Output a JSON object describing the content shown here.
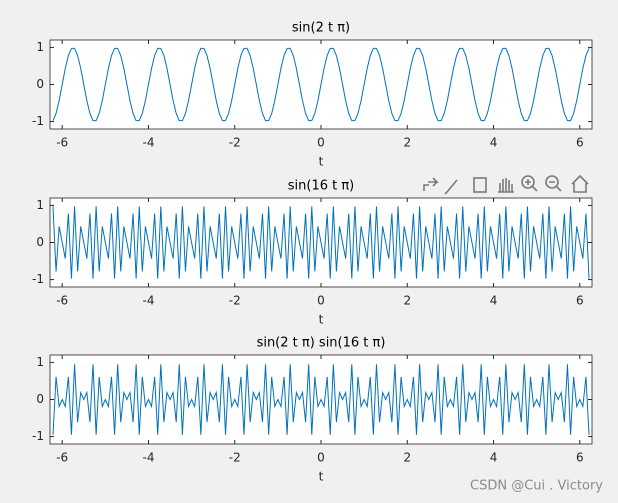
{
  "chart_data": [
    {
      "type": "line",
      "title": "sin(2 t π)",
      "xlabel": "t",
      "x": [
        -6.214,
        -6.143,
        -6.071,
        -6,
        -5.929,
        -5.857,
        -5.786,
        -5.714,
        -5.643,
        -5.571,
        -5.5,
        -5.429,
        -5.357,
        -5.286,
        -5.214,
        -5.143,
        -5.071,
        -5,
        -4.929,
        -4.857,
        -4.786,
        -4.714,
        -4.643,
        -4.571,
        -4.5,
        -4.429,
        -4.357,
        -4.286,
        -4.214,
        -4.143,
        -4.071,
        -4,
        -3.929,
        -3.857,
        -3.786,
        -3.714,
        -3.643,
        -3.571,
        -3.5,
        -3.429,
        -3.357,
        -3.286,
        -3.214,
        -3.143,
        -3.071,
        -3,
        -2.929,
        -2.857,
        -2.786,
        -2.714,
        -2.643,
        -2.571,
        -2.5,
        -2.429,
        -2.357,
        -2.286,
        -2.214,
        -2.143,
        -2.071,
        -2,
        -1.929,
        -1.857,
        -1.786,
        -1.714,
        -1.643,
        -1.571,
        -1.5,
        -1.429,
        -1.357,
        -1.286,
        -1.214,
        -1.143,
        -1.071,
        -1,
        -0.929,
        -0.857,
        -0.786,
        -0.714,
        -0.643,
        -0.571,
        -0.5,
        -0.429,
        -0.357,
        -0.286,
        -0.214,
        -0.143,
        -0.071,
        0,
        0.071,
        0.143,
        0.214,
        0.286,
        0.357,
        0.429,
        0.5,
        0.571,
        0.643,
        0.714,
        0.786,
        0.857,
        0.929,
        1,
        1.071,
        1.143,
        1.214,
        1.286,
        1.357,
        1.429,
        1.5,
        1.571,
        1.643,
        1.714,
        1.786,
        1.857,
        1.929,
        2,
        2.071,
        2.143,
        2.214,
        2.286,
        2.357,
        2.429,
        2.5,
        2.571,
        2.643,
        2.714,
        2.786,
        2.857,
        2.929,
        3,
        3.071,
        3.143,
        3.214,
        3.286,
        3.357,
        3.429,
        3.5,
        3.571,
        3.643,
        3.714,
        3.786,
        3.857,
        3.929,
        4,
        4.071,
        4.143,
        4.214,
        4.286,
        4.357,
        4.429,
        4.5,
        4.571,
        4.643,
        4.714,
        4.786,
        4.857,
        4.929,
        5,
        5.071,
        5.143,
        5.214,
        5.286,
        5.357,
        5.429,
        5.5,
        5.571,
        5.643,
        5.714,
        5.786,
        5.857,
        5.929,
        6,
        6.071,
        6.143,
        6.214
      ],
      "series": [
        {
          "color": "#0072bd",
          "values": [
            -0.975,
            -0.782,
            -0.434,
            0,
            0.434,
            0.782,
            0.975,
            0.975,
            0.782,
            0.434,
            0,
            -0.434,
            -0.782,
            -0.975,
            -0.975,
            -0.782,
            -0.434,
            0,
            0.434,
            0.782,
            0.975,
            0.975,
            0.782,
            0.434,
            0,
            -0.434,
            -0.782,
            -0.975,
            -0.975,
            -0.782,
            -0.434,
            0,
            0.434,
            0.782,
            0.975,
            0.975,
            0.782,
            0.434,
            0,
            -0.434,
            -0.782,
            -0.975,
            -0.975,
            -0.782,
            -0.434,
            0,
            0.434,
            0.782,
            0.975,
            0.975,
            0.782,
            0.434,
            0,
            -0.434,
            -0.782,
            -0.975,
            -0.975,
            -0.782,
            -0.434,
            0,
            0.434,
            0.782,
            0.975,
            0.975,
            0.782,
            0.434,
            0,
            -0.434,
            -0.782,
            -0.975,
            -0.975,
            -0.782,
            -0.434,
            0,
            0.434,
            0.782,
            0.975,
            0.975,
            0.782,
            0.434,
            0,
            -0.434,
            -0.782,
            -0.975,
            -0.975,
            -0.782,
            -0.434,
            0,
            0.434,
            0.782,
            0.975,
            0.975,
            0.782,
            0.434,
            0,
            -0.434,
            -0.782,
            -0.975,
            -0.975,
            -0.782,
            -0.434,
            0,
            0.434,
            0.782,
            0.975,
            0.975,
            0.782,
            0.434,
            0,
            -0.434,
            -0.782,
            -0.975,
            -0.975,
            -0.782,
            -0.434,
            0,
            0.434,
            0.782,
            0.975,
            0.975,
            0.782,
            0.434,
            0,
            -0.434,
            -0.782,
            -0.975,
            -0.975,
            -0.782,
            -0.434,
            0,
            0.434,
            0.782,
            0.975,
            0.975,
            0.782,
            0.434,
            0,
            -0.434,
            -0.782,
            -0.975,
            -0.975,
            -0.782,
            -0.434,
            0,
            0.434,
            0.782,
            0.975,
            0.975,
            0.782,
            0.434,
            0,
            -0.434,
            -0.782,
            -0.975,
            -0.975,
            -0.782,
            -0.434,
            0,
            0.434,
            0.782,
            0.975,
            0.975,
            0.782,
            0.434,
            0,
            -0.434,
            -0.782,
            -0.975,
            -0.975,
            -0.782,
            -0.434,
            0,
            0.434,
            0.782,
            0.975
          ]
        }
      ],
      "xlim": [
        -6.2832,
        6.2832
      ],
      "ylim": [
        -1.2,
        1.2
      ],
      "xticks": [
        -6,
        -4,
        -2,
        0,
        2,
        4,
        6
      ],
      "yticks": [
        -1,
        0,
        1
      ]
    },
    {
      "type": "line",
      "title": "sin(16 t π)",
      "xlabel": "t",
      "x": [
        -6.214,
        -6.143,
        -6.071,
        -6,
        -5.929,
        -5.857,
        -5.786,
        -5.714,
        -5.643,
        -5.571,
        -5.5,
        -5.429,
        -5.357,
        -5.286,
        -5.214,
        -5.143,
        -5.071,
        -5,
        -4.929,
        -4.857,
        -4.786,
        -4.714,
        -4.643,
        -4.571,
        -4.5,
        -4.429,
        -4.357,
        -4.286,
        -4.214,
        -4.143,
        -4.071,
        -4,
        -3.929,
        -3.857,
        -3.786,
        -3.714,
        -3.643,
        -3.571,
        -3.5,
        -3.429,
        -3.357,
        -3.286,
        -3.214,
        -3.143,
        -3.071,
        -3,
        -2.929,
        -2.857,
        -2.786,
        -2.714,
        -2.643,
        -2.571,
        -2.5,
        -2.429,
        -2.357,
        -2.286,
        -2.214,
        -2.143,
        -2.071,
        -2,
        -1.929,
        -1.857,
        -1.786,
        -1.714,
        -1.643,
        -1.571,
        -1.5,
        -1.429,
        -1.357,
        -1.286,
        -1.214,
        -1.143,
        -1.071,
        -1,
        -0.929,
        -0.857,
        -0.786,
        -0.714,
        -0.643,
        -0.571,
        -0.5,
        -0.429,
        -0.357,
        -0.286,
        -0.214,
        -0.143,
        -0.071,
        0,
        0.071,
        0.143,
        0.214,
        0.286,
        0.357,
        0.429,
        0.5,
        0.571,
        0.643,
        0.714,
        0.786,
        0.857,
        0.929,
        1,
        1.071,
        1.143,
        1.214,
        1.286,
        1.357,
        1.429,
        1.5,
        1.571,
        1.643,
        1.714,
        1.786,
        1.857,
        1.929,
        2,
        2.071,
        2.143,
        2.214,
        2.286,
        2.357,
        2.429,
        2.5,
        2.571,
        2.643,
        2.714,
        2.786,
        2.857,
        2.929,
        3,
        3.071,
        3.143,
        3.214,
        3.286,
        3.357,
        3.429,
        3.5,
        3.571,
        3.643,
        3.714,
        3.786,
        3.857,
        3.929,
        4,
        4.071,
        4.143,
        4.214,
        4.286,
        4.357,
        4.429,
        4.5,
        4.571,
        4.643,
        4.714,
        4.786,
        4.857,
        4.929,
        5,
        5.071,
        5.143,
        5.214,
        5.286,
        5.357,
        5.429,
        5.5,
        5.571,
        5.643,
        5.714,
        5.786,
        5.857,
        5.929,
        6,
        6.071,
        6.143,
        6.214
      ],
      "series": [
        {
          "color": "#0072bd",
          "values": [
            0.975,
            -0.782,
            0.434,
            0,
            -0.434,
            0.782,
            -0.975,
            0.975,
            -0.782,
            0.434,
            0,
            -0.434,
            0.782,
            -0.975,
            0.975,
            -0.782,
            0.434,
            0,
            -0.434,
            0.782,
            -0.975,
            0.975,
            -0.782,
            0.434,
            0,
            -0.434,
            0.782,
            -0.975,
            0.975,
            -0.782,
            0.434,
            0,
            -0.434,
            0.782,
            -0.975,
            0.975,
            -0.782,
            0.434,
            0,
            -0.434,
            0.782,
            -0.975,
            0.975,
            -0.782,
            0.434,
            0,
            -0.434,
            0.782,
            -0.975,
            0.975,
            -0.782,
            0.434,
            0,
            -0.434,
            0.782,
            -0.975,
            0.975,
            -0.782,
            0.434,
            0,
            -0.434,
            0.782,
            -0.975,
            0.975,
            -0.782,
            0.434,
            0,
            -0.434,
            0.782,
            -0.975,
            0.975,
            -0.782,
            0.434,
            0,
            -0.434,
            0.782,
            -0.975,
            0.975,
            -0.782,
            0.434,
            0,
            -0.434,
            0.782,
            -0.975,
            0.975,
            -0.782,
            0.434,
            0,
            -0.434,
            0.782,
            -0.975,
            0.975,
            -0.782,
            0.434,
            0,
            -0.434,
            0.782,
            -0.975,
            0.975,
            -0.782,
            0.434,
            0,
            -0.434,
            0.782,
            -0.975,
            0.975,
            -0.782,
            0.434,
            0,
            -0.434,
            0.782,
            -0.975,
            0.975,
            -0.782,
            0.434,
            0,
            -0.434,
            0.782,
            -0.975,
            0.975,
            -0.782,
            0.434,
            0,
            -0.434,
            0.782,
            -0.975,
            0.975,
            -0.782,
            0.434,
            0,
            -0.434,
            0.782,
            -0.975,
            0.975,
            -0.782,
            0.434,
            0,
            -0.434,
            0.782,
            -0.975,
            0.975,
            -0.782,
            0.434,
            0,
            -0.434,
            0.782,
            -0.975,
            0.975,
            -0.782,
            0.434,
            0,
            -0.434,
            0.782,
            -0.975,
            0.975,
            -0.782,
            0.434,
            0,
            -0.434,
            0.782,
            -0.975,
            0.975,
            -0.782,
            0.434,
            0,
            -0.434,
            0.782,
            -0.975,
            0.975,
            -0.782,
            0.434,
            0,
            -0.434,
            0.782,
            -0.975
          ]
        }
      ],
      "xlim": [
        -6.2832,
        6.2832
      ],
      "ylim": [
        -1.2,
        1.2
      ],
      "xticks": [
        -6,
        -4,
        -2,
        0,
        2,
        4,
        6
      ],
      "yticks": [
        -1,
        0,
        1
      ]
    },
    {
      "type": "line",
      "title": "sin(2 t π) sin(16 t π)",
      "xlabel": "t",
      "x": [
        -6.214,
        -6.143,
        -6.071,
        -6,
        -5.929,
        -5.857,
        -5.786,
        -5.714,
        -5.643,
        -5.571,
        -5.5,
        -5.429,
        -5.357,
        -5.286,
        -5.214,
        -5.143,
        -5.071,
        -5,
        -4.929,
        -4.857,
        -4.786,
        -4.714,
        -4.643,
        -4.571,
        -4.5,
        -4.429,
        -4.357,
        -4.286,
        -4.214,
        -4.143,
        -4.071,
        -4,
        -3.929,
        -3.857,
        -3.786,
        -3.714,
        -3.643,
        -3.571,
        -3.5,
        -3.429,
        -3.357,
        -3.286,
        -3.214,
        -3.143,
        -3.071,
        -3,
        -2.929,
        -2.857,
        -2.786,
        -2.714,
        -2.643,
        -2.571,
        -2.5,
        -2.429,
        -2.357,
        -2.286,
        -2.214,
        -2.143,
        -2.071,
        -2,
        -1.929,
        -1.857,
        -1.786,
        -1.714,
        -1.643,
        -1.571,
        -1.5,
        -1.429,
        -1.357,
        -1.286,
        -1.214,
        -1.143,
        -1.071,
        -1,
        -0.929,
        -0.857,
        -0.786,
        -0.714,
        -0.643,
        -0.571,
        -0.5,
        -0.429,
        -0.357,
        -0.286,
        -0.214,
        -0.143,
        -0.071,
        0,
        0.071,
        0.143,
        0.214,
        0.286,
        0.357,
        0.429,
        0.5,
        0.571,
        0.643,
        0.714,
        0.786,
        0.857,
        0.929,
        1,
        1.071,
        1.143,
        1.214,
        1.286,
        1.357,
        1.429,
        1.5,
        1.571,
        1.643,
        1.714,
        1.786,
        1.857,
        1.929,
        2,
        2.071,
        2.143,
        2.214,
        2.286,
        2.357,
        2.429,
        2.5,
        2.571,
        2.643,
        2.714,
        2.786,
        2.857,
        2.929,
        3,
        3.071,
        3.143,
        3.214,
        3.286,
        3.357,
        3.429,
        3.5,
        3.571,
        3.643,
        3.714,
        3.786,
        3.857,
        3.929,
        4,
        4.071,
        4.143,
        4.214,
        4.286,
        4.357,
        4.429,
        4.5,
        4.571,
        4.643,
        4.714,
        4.786,
        4.857,
        4.929,
        5,
        5.071,
        5.143,
        5.214,
        5.286,
        5.357,
        5.429,
        5.5,
        5.571,
        5.643,
        5.714,
        5.786,
        5.857,
        5.929,
        6,
        6.071,
        6.143,
        6.214
      ],
      "series": [
        {
          "color": "#0072bd",
          "values": [
            -0.95,
            0.611,
            -0.188,
            0,
            -0.188,
            0.611,
            -0.95,
            0.95,
            -0.611,
            0.188,
            0,
            0.188,
            -0.611,
            0.95,
            -0.95,
            0.611,
            -0.188,
            0,
            -0.188,
            0.611,
            -0.95,
            0.95,
            -0.611,
            0.188,
            0,
            0.188,
            -0.611,
            0.95,
            -0.95,
            0.611,
            -0.188,
            0,
            -0.188,
            0.611,
            -0.95,
            0.95,
            -0.611,
            0.188,
            0,
            0.188,
            -0.611,
            0.95,
            -0.95,
            0.611,
            -0.188,
            0,
            -0.188,
            0.611,
            -0.95,
            0.95,
            -0.611,
            0.188,
            0,
            0.188,
            -0.611,
            0.95,
            -0.95,
            0.611,
            -0.188,
            0,
            -0.188,
            0.611,
            -0.95,
            0.95,
            -0.611,
            0.188,
            0,
            0.188,
            -0.611,
            0.95,
            -0.95,
            0.611,
            -0.188,
            0,
            -0.188,
            0.611,
            -0.95,
            0.95,
            -0.611,
            0.188,
            0,
            0.188,
            -0.611,
            0.95,
            -0.95,
            0.611,
            -0.188,
            0,
            -0.188,
            0.611,
            -0.95,
            0.95,
            -0.611,
            0.188,
            0,
            0.188,
            -0.611,
            0.95,
            -0.95,
            0.611,
            -0.188,
            0,
            -0.188,
            0.611,
            -0.95,
            0.95,
            -0.611,
            0.188,
            0,
            0.188,
            -0.611,
            0.95,
            -0.95,
            0.611,
            -0.188,
            0,
            -0.188,
            0.611,
            -0.95,
            0.95,
            -0.611,
            0.188,
            0,
            0.188,
            -0.611,
            0.95,
            -0.95,
            0.611,
            -0.188,
            0,
            -0.188,
            0.611,
            -0.95,
            0.95,
            -0.611,
            0.188,
            0,
            0.188,
            -0.611,
            0.95,
            -0.95,
            0.611,
            -0.188,
            0,
            -0.188,
            0.611,
            -0.95,
            0.95,
            -0.611,
            0.188,
            0,
            0.188,
            -0.611,
            0.95,
            -0.95,
            0.611,
            -0.188,
            0,
            -0.188,
            0.611,
            -0.95,
            0.95,
            -0.611,
            0.188,
            0,
            0.188,
            -0.611,
            0.95,
            -0.95,
            0.611,
            -0.188,
            0,
            -0.188,
            0.611,
            -0.95
          ]
        }
      ],
      "xlim": [
        -6.2832,
        6.2832
      ],
      "ylim": [
        -1.2,
        1.2
      ],
      "xticks": [
        -6,
        -4,
        -2,
        0,
        2,
        4,
        6
      ],
      "yticks": [
        -1,
        0,
        1
      ]
    }
  ],
  "watermark": "CSDN @Cui . Victory"
}
